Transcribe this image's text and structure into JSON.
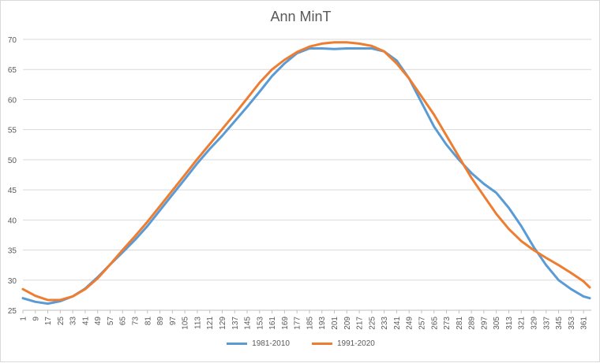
{
  "chart_data": {
    "type": "line",
    "title": "Ann MinT",
    "xlabel": "",
    "ylabel": "",
    "xlim": [
      1,
      366
    ],
    "ylim": [
      25,
      70
    ],
    "yticks": [
      25,
      30,
      35,
      40,
      45,
      50,
      55,
      60,
      65,
      70
    ],
    "xticks": [
      1,
      9,
      17,
      25,
      33,
      41,
      49,
      57,
      65,
      73,
      81,
      89,
      97,
      105,
      113,
      121,
      129,
      137,
      145,
      153,
      161,
      169,
      177,
      185,
      193,
      201,
      209,
      217,
      225,
      233,
      241,
      249,
      257,
      265,
      273,
      281,
      289,
      297,
      305,
      313,
      321,
      329,
      337,
      345,
      353,
      361
    ],
    "grid": true,
    "legend_position": "bottom",
    "series": [
      {
        "name": "1981-2010",
        "color": "#5b9bd5",
        "x": [
          1,
          9,
          17,
          25,
          33,
          41,
          49,
          57,
          65,
          73,
          81,
          89,
          97,
          105,
          113,
          121,
          129,
          137,
          145,
          153,
          161,
          169,
          177,
          185,
          193,
          201,
          209,
          217,
          225,
          233,
          241,
          249,
          257,
          265,
          273,
          281,
          289,
          297,
          305,
          313,
          321,
          329,
          337,
          345,
          353,
          361,
          365
        ],
        "y": [
          27.0,
          26.4,
          26.1,
          26.5,
          27.3,
          28.6,
          30.5,
          32.6,
          34.6,
          36.7,
          39.0,
          41.6,
          44.2,
          46.8,
          49.4,
          51.8,
          54.0,
          56.4,
          58.8,
          61.3,
          63.9,
          66.0,
          67.7,
          68.5,
          68.5,
          68.4,
          68.5,
          68.5,
          68.5,
          68.0,
          66.5,
          63.5,
          59.5,
          55.5,
          52.5,
          50.0,
          47.8,
          46.0,
          44.5,
          42.0,
          39.0,
          35.5,
          32.5,
          30.0,
          28.5,
          27.3,
          27.0
        ]
      },
      {
        "name": "1991-2020",
        "color": "#ed7d31",
        "x": [
          1,
          9,
          17,
          25,
          33,
          41,
          49,
          57,
          65,
          73,
          81,
          89,
          97,
          105,
          113,
          121,
          129,
          137,
          145,
          153,
          161,
          169,
          177,
          185,
          193,
          201,
          209,
          217,
          225,
          233,
          241,
          249,
          257,
          265,
          273,
          281,
          289,
          297,
          305,
          313,
          321,
          329,
          337,
          345,
          353,
          361,
          365
        ],
        "y": [
          28.5,
          27.4,
          26.7,
          26.7,
          27.3,
          28.5,
          30.3,
          32.6,
          35.0,
          37.3,
          39.7,
          42.3,
          44.9,
          47.5,
          50.1,
          52.6,
          55.1,
          57.6,
          60.2,
          62.8,
          65.0,
          66.6,
          67.9,
          68.8,
          69.3,
          69.5,
          69.5,
          69.3,
          68.9,
          68.0,
          66.0,
          63.5,
          60.5,
          57.5,
          54.0,
          50.5,
          47.0,
          44.0,
          41.0,
          38.5,
          36.5,
          35.0,
          33.7,
          32.5,
          31.2,
          29.8,
          28.8
        ]
      }
    ]
  }
}
